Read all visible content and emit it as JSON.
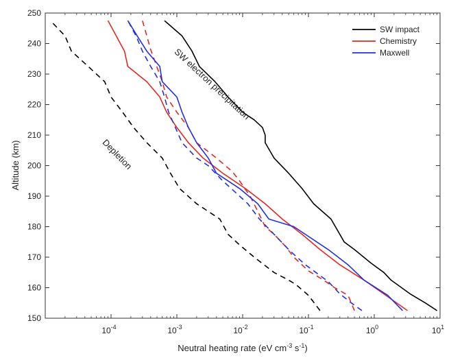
{
  "chart_data": {
    "type": "line",
    "xlabel_main": "Neutral heating rate (eV cm",
    "xlabel_exp1": "-3",
    "xlabel_mid": " s",
    "xlabel_exp2": "-1",
    "xlabel_end": ")",
    "ylabel": "Altitude (km)",
    "x_scale": "log",
    "xlim": [
      1e-05,
      10
    ],
    "ylim": [
      150,
      250
    ],
    "x_ticks": [
      {
        "value": 0.0001,
        "base": "10",
        "exp": "-4"
      },
      {
        "value": 0.001,
        "base": "10",
        "exp": "-3"
      },
      {
        "value": 0.01,
        "base": "10",
        "exp": "-2"
      },
      {
        "value": 0.1,
        "base": "10",
        "exp": "-1"
      },
      {
        "value": 1,
        "base": "10",
        "exp": "0"
      },
      {
        "value": 10,
        "base": "10",
        "exp": "1"
      }
    ],
    "y_ticks": [
      150,
      160,
      170,
      180,
      190,
      200,
      210,
      220,
      230,
      240,
      250
    ],
    "grid": false,
    "legend_position": "top-right",
    "legend": [
      {
        "label": "SW impact",
        "color": "#000000"
      },
      {
        "label": "Chemistry",
        "color": "#e8251f"
      },
      {
        "label": "Maxwell",
        "color": "#1f2ee8"
      }
    ],
    "annotations": [
      {
        "text": "SW electron precipitation",
        "x": 0.0032,
        "y": 226,
        "angle": 43
      },
      {
        "text": "Depletion",
        "x": 0.000115,
        "y": 203,
        "angle": 46
      }
    ],
    "series": [
      {
        "id": "sw-impact-solid",
        "color": "#000000",
        "dash": "solid",
        "points": [
          [
            9.0,
            152.5
          ],
          [
            6.0,
            155
          ],
          [
            3.5,
            158
          ],
          [
            1.8,
            162.5
          ],
          [
            1.4,
            165
          ],
          [
            0.9,
            168
          ],
          [
            0.5,
            172.5
          ],
          [
            0.35,
            175
          ],
          [
            0.22,
            182.5
          ],
          [
            0.12,
            187.5
          ],
          [
            0.08,
            192.5
          ],
          [
            0.05,
            197.5
          ],
          [
            0.03,
            202.5
          ],
          [
            0.022,
            207.5
          ],
          [
            0.022,
            210
          ],
          [
            0.02,
            212.5
          ],
          [
            0.015,
            215
          ],
          [
            0.01,
            217.5
          ],
          [
            0.006,
            222.5
          ],
          [
            0.0038,
            227.5
          ],
          [
            0.0022,
            232.5
          ],
          [
            0.0017,
            237.5
          ],
          [
            0.0012,
            242.5
          ],
          [
            0.00065,
            247.5
          ]
        ]
      },
      {
        "id": "depletion-dashed",
        "color": "#000000",
        "dash": "dashed",
        "points": [
          [
            0.15,
            152.5
          ],
          [
            0.1,
            157.5
          ],
          [
            0.065,
            161
          ],
          [
            0.05,
            162.5
          ],
          [
            0.03,
            165
          ],
          [
            0.015,
            170
          ],
          [
            0.009,
            174
          ],
          [
            0.006,
            177.5
          ],
          [
            0.0045,
            182.5
          ],
          [
            0.002,
            187.5
          ],
          [
            0.0011,
            192.5
          ],
          [
            0.0008,
            197.5
          ],
          [
            0.0006,
            202.5
          ],
          [
            0.00035,
            207.5
          ],
          [
            0.00022,
            212.5
          ],
          [
            0.00015,
            217.5
          ],
          [
            0.0001,
            222.5
          ],
          [
            8e-05,
            227.5
          ],
          [
            4.5e-05,
            232.5
          ],
          [
            2.5e-05,
            237.5
          ],
          [
            2e-05,
            242.5
          ],
          [
            1.2e-05,
            247.5
          ]
        ]
      },
      {
        "id": "chemistry-solid",
        "color": "#e8251f",
        "dash": "solid",
        "points": [
          [
            3.2,
            152.5
          ],
          [
            1.5,
            157.5
          ],
          [
            0.7,
            162.5
          ],
          [
            0.3,
            167.5
          ],
          [
            0.15,
            172.5
          ],
          [
            0.08,
            177.5
          ],
          [
            0.04,
            182.5
          ],
          [
            0.022,
            187.5
          ],
          [
            0.011,
            192.5
          ],
          [
            0.005,
            197.5
          ],
          [
            0.0025,
            202.5
          ],
          [
            0.0015,
            207.5
          ],
          [
            0.001,
            212.5
          ],
          [
            0.0007,
            217.5
          ],
          [
            0.00055,
            222.5
          ],
          [
            0.00035,
            227.5
          ],
          [
            0.00018,
            232.5
          ],
          [
            0.00016,
            237.5
          ],
          [
            0.00012,
            242.5
          ],
          [
            9e-05,
            247.5
          ]
        ]
      },
      {
        "id": "chemistry-dashed",
        "color": "#e8251f",
        "dash": "dashed",
        "points": [
          [
            0.5,
            152.5
          ],
          [
            0.4,
            157.5
          ],
          [
            0.25,
            160
          ],
          [
            0.17,
            162.5
          ],
          [
            0.1,
            165.5
          ],
          [
            0.06,
            170
          ],
          [
            0.045,
            173.5
          ],
          [
            0.03,
            177.5
          ],
          [
            0.022,
            180
          ],
          [
            0.017,
            185
          ],
          [
            0.013,
            190
          ],
          [
            0.009,
            195
          ],
          [
            0.007,
            198
          ],
          [
            0.004,
            202.5
          ],
          [
            0.002,
            207.5
          ],
          [
            0.0015,
            212.5
          ],
          [
            0.001,
            217.5
          ],
          [
            0.0007,
            222.5
          ],
          [
            0.0006,
            227.5
          ],
          [
            0.00045,
            235
          ],
          [
            0.0004,
            238
          ],
          [
            0.00035,
            242.5
          ],
          [
            0.0003,
            247.5
          ]
        ]
      },
      {
        "id": "maxwell-solid",
        "color": "#1f2ee8",
        "dash": "solid",
        "points": [
          [
            2.7,
            152.5
          ],
          [
            1.6,
            157.5
          ],
          [
            0.7,
            162.5
          ],
          [
            0.4,
            167.5
          ],
          [
            0.2,
            172.5
          ],
          [
            0.06,
            180
          ],
          [
            0.025,
            182.5
          ],
          [
            0.017,
            187.5
          ],
          [
            0.009,
            192.5
          ],
          [
            0.004,
            197.5
          ],
          [
            0.003,
            202.5
          ],
          [
            0.002,
            207.5
          ],
          [
            0.0015,
            212.5
          ],
          [
            0.0012,
            217.5
          ],
          [
            0.001,
            222.5
          ],
          [
            0.0006,
            227.5
          ],
          [
            0.00055,
            232.5
          ],
          [
            0.00035,
            237.5
          ],
          [
            0.00025,
            242.5
          ],
          [
            0.00018,
            247.5
          ]
        ]
      },
      {
        "id": "maxwell-dashed",
        "color": "#1f2ee8",
        "dash": "dashed",
        "points": [
          [
            0.65,
            152.5
          ],
          [
            0.45,
            155
          ],
          [
            0.3,
            158
          ],
          [
            0.2,
            162
          ],
          [
            0.13,
            165
          ],
          [
            0.09,
            167.5
          ],
          [
            0.05,
            172.5
          ],
          [
            0.03,
            177.5
          ],
          [
            0.018,
            182.5
          ],
          [
            0.012,
            187.5
          ],
          [
            0.009,
            190
          ],
          [
            0.005,
            195
          ],
          [
            0.003,
            200
          ],
          [
            0.002,
            202.5
          ],
          [
            0.0012,
            207.5
          ],
          [
            0.00095,
            212.5
          ],
          [
            0.00075,
            217.5
          ],
          [
            0.00065,
            222.5
          ],
          [
            0.00055,
            227.5
          ],
          [
            0.0004,
            232.5
          ],
          [
            0.0003,
            237.5
          ],
          [
            0.00024,
            242.5
          ],
          [
            0.00018,
            247.5
          ]
        ]
      }
    ]
  }
}
